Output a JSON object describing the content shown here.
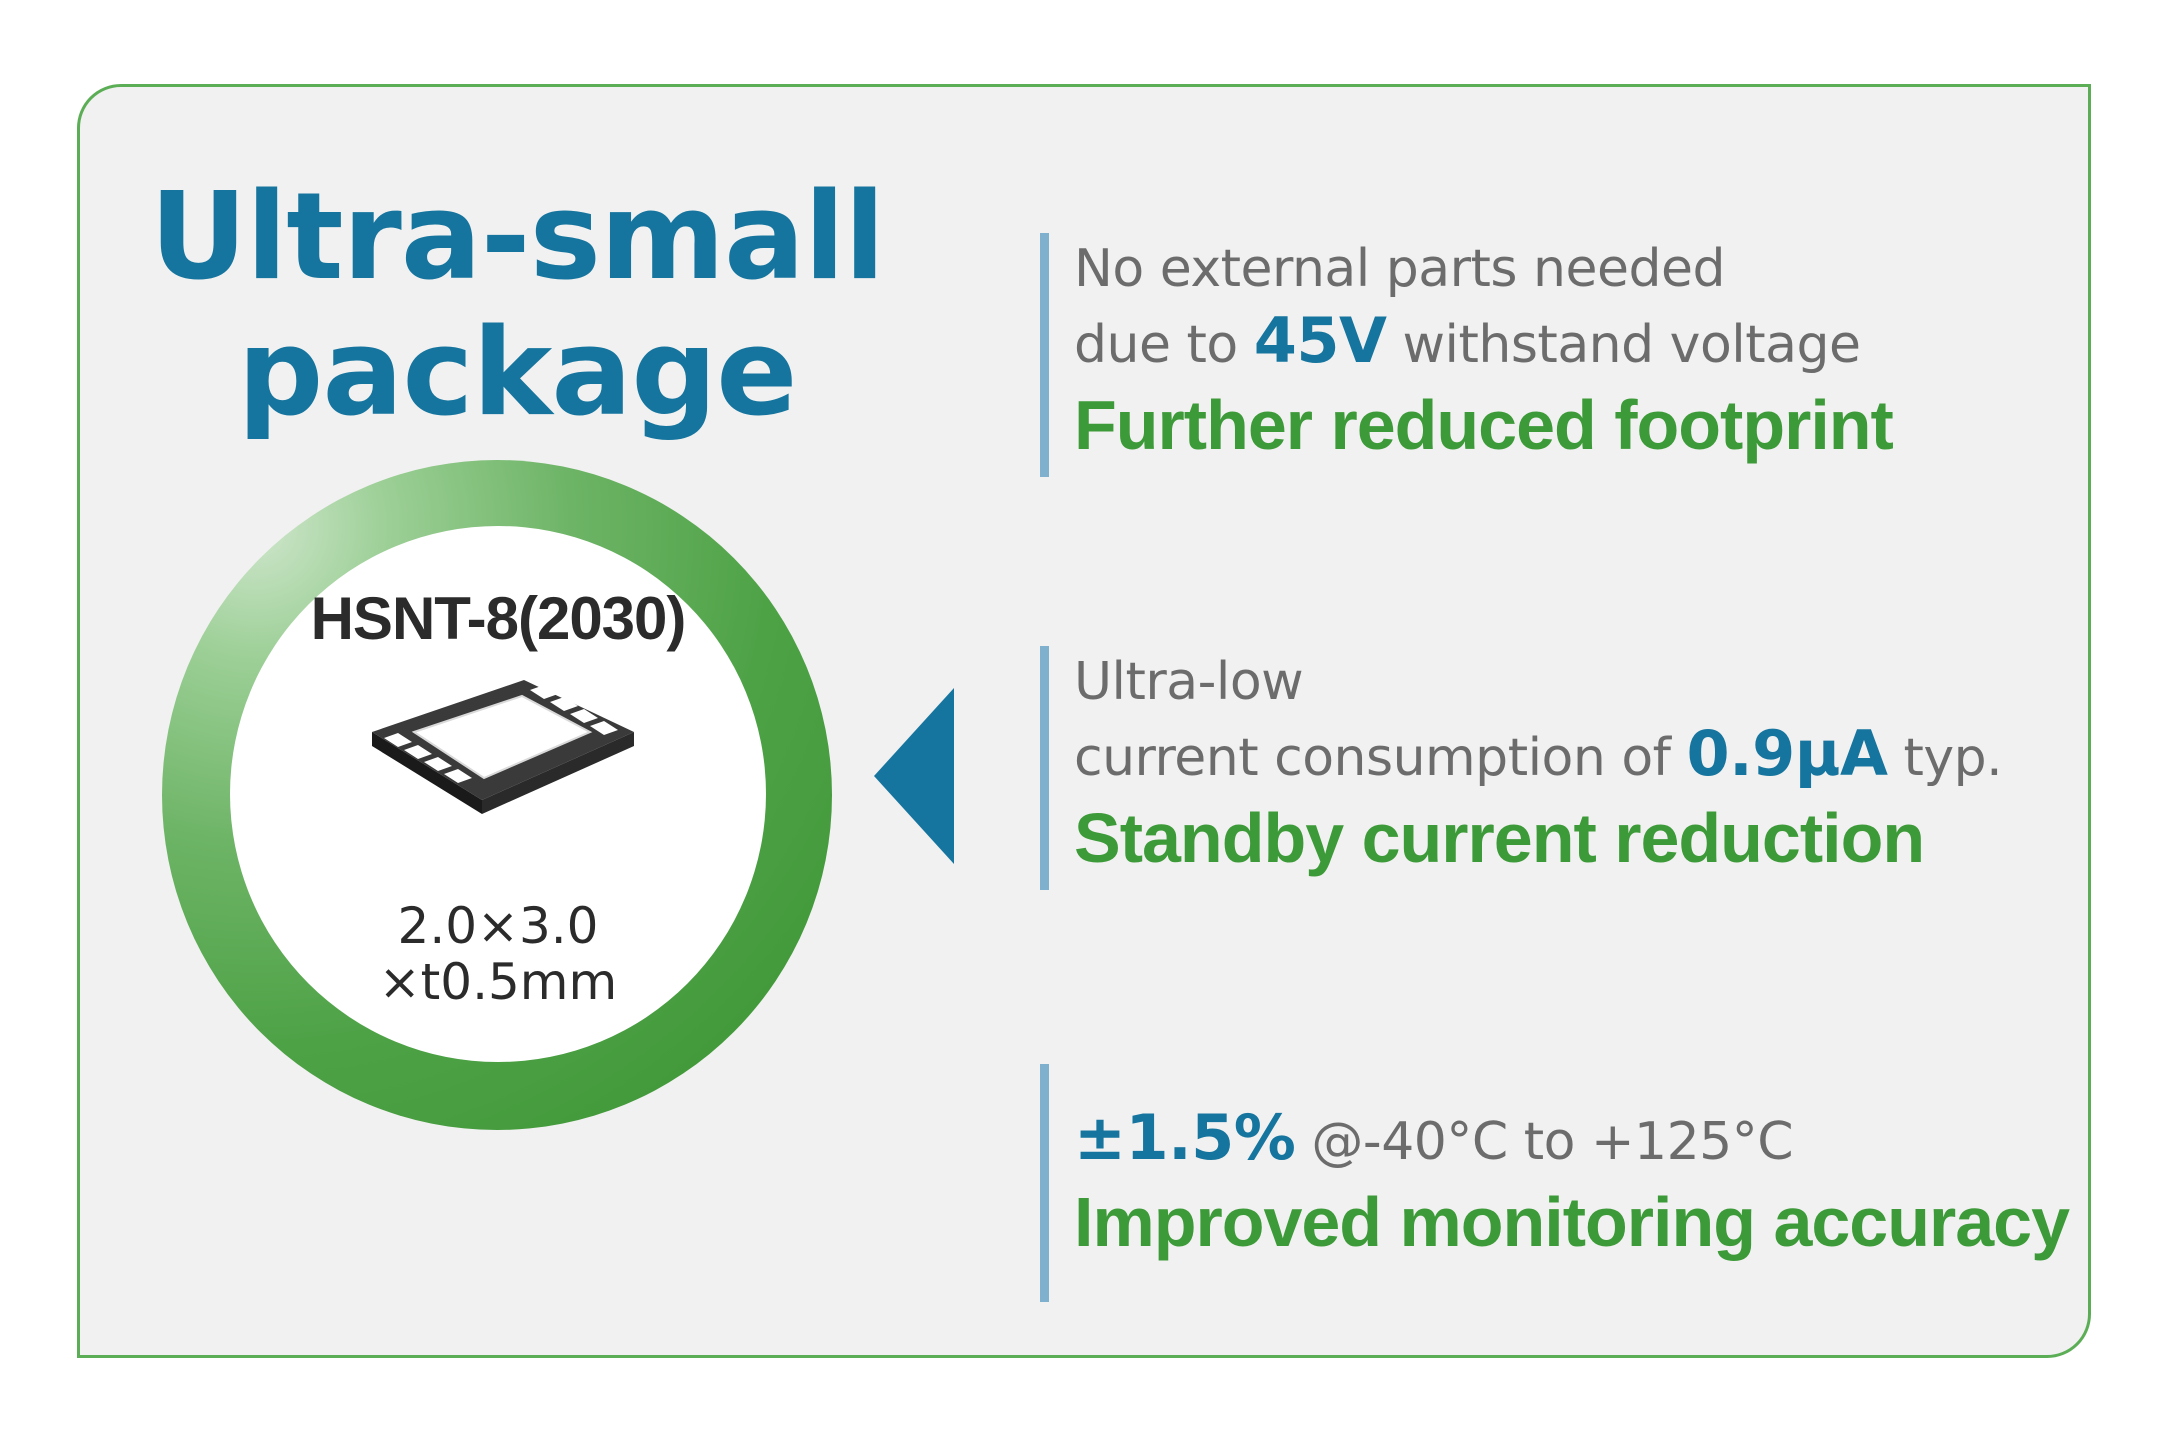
{
  "headline": {
    "line1": "Ultra-small",
    "line2": "package"
  },
  "package": {
    "name": "HSNT-8(2030)",
    "dims_line1": "2.0×3.0",
    "dims_line2": "×t0.5mm"
  },
  "features": [
    {
      "desc_line1": "No external parts needed",
      "desc_line2_pre": "due to ",
      "highlight": "45V",
      "desc_line2_post": " withstand voltage",
      "benefit": "Further reduced footprint"
    },
    {
      "desc_line1": "Ultra-low",
      "desc_line2_pre": "current consumption of ",
      "highlight": "0.9µA",
      "desc_line2_post": " typ.",
      "benefit": "Standby current reduction"
    },
    {
      "highlight": "±1.5%",
      "desc_post": " @-40°C to +125°C",
      "benefit": "Improved monitoring accuracy"
    }
  ],
  "colors": {
    "headline_blue": "#16759e",
    "benefit_green": "#3d9a38",
    "border_green": "#5cae56",
    "bar_blue": "#7fb1ce",
    "background": "#f1f1f1"
  },
  "icons": {
    "chip": "ic-package-icon",
    "pointer": "left-triangle-arrow-icon"
  }
}
